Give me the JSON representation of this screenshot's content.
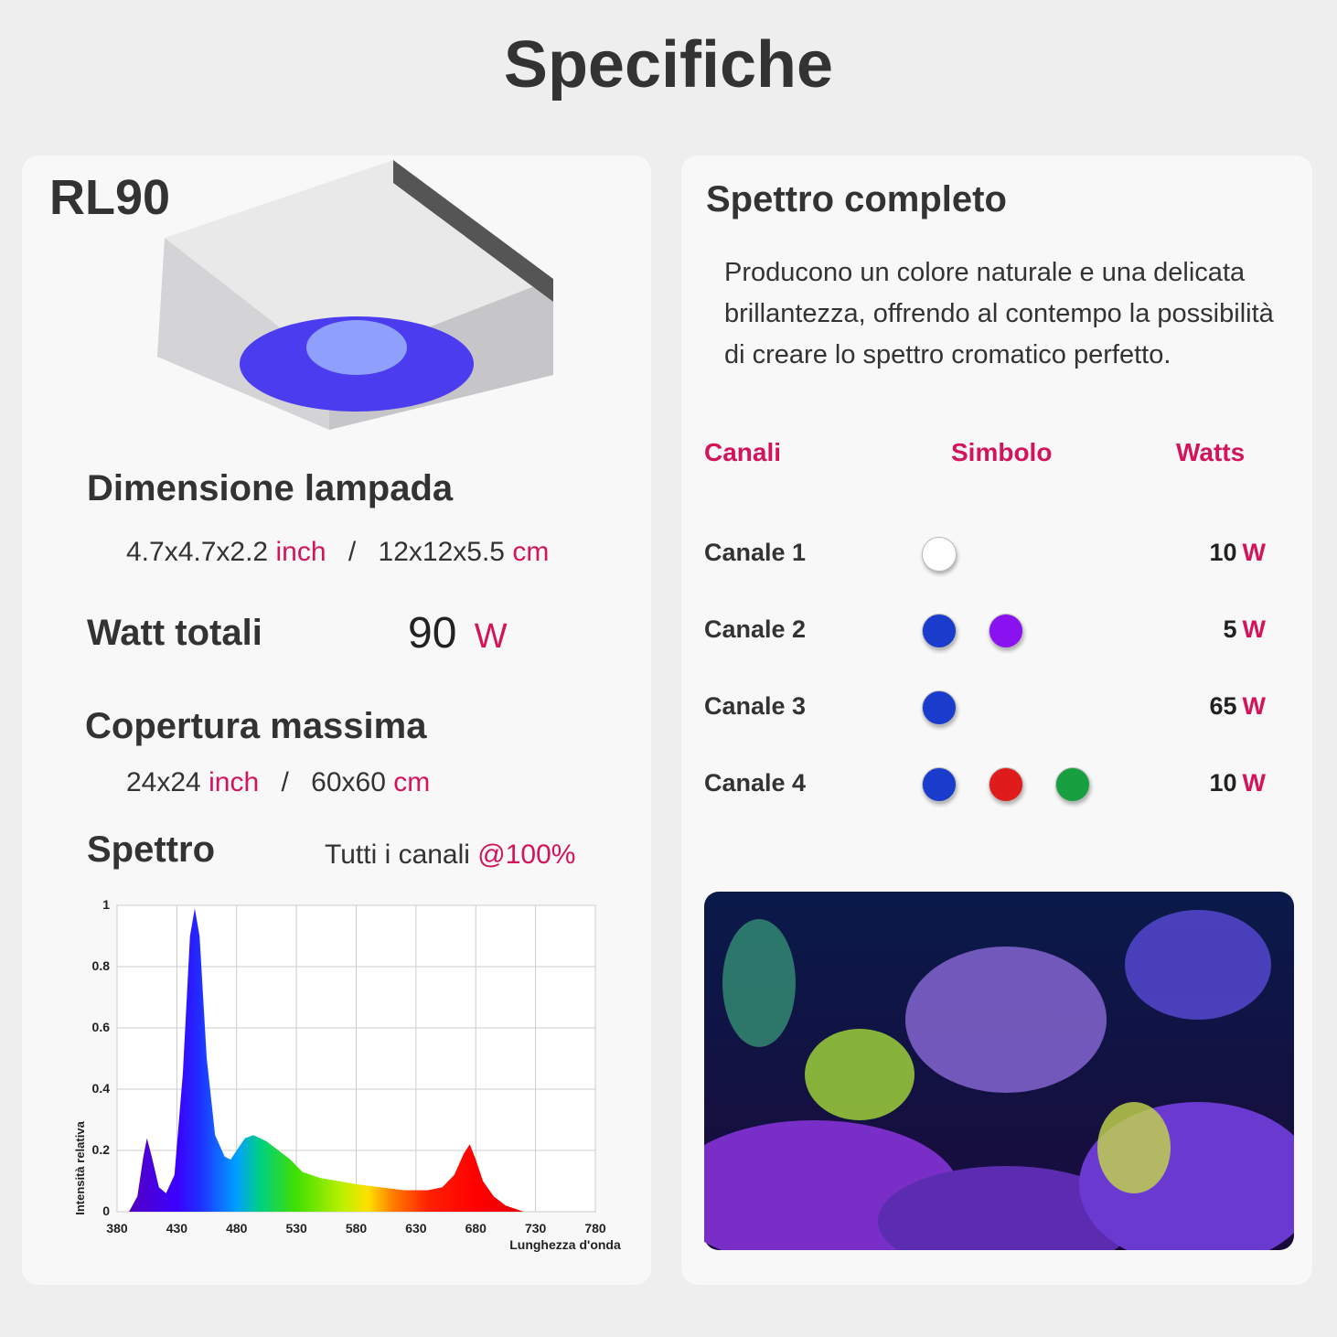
{
  "header": {
    "title": "Specifiche"
  },
  "left": {
    "model": "RL90",
    "dimension": {
      "label": "Dimensione lampada",
      "inch_value": "4.7x4.7x2.2",
      "inch_unit": "inch",
      "separator": "/",
      "cm_value": "12x12x5.5",
      "cm_unit": "cm"
    },
    "power": {
      "label": "Watt totali",
      "value": "90",
      "unit": "W"
    },
    "coverage": {
      "label": "Copertura massima",
      "inch_value": "24x24",
      "inch_unit": "inch",
      "separator": "/",
      "cm_value": "60x60",
      "cm_unit": "cm"
    },
    "spectrum": {
      "label": "Spettro",
      "note": "Tutti i canali",
      "note_accent": "@100%"
    }
  },
  "chart_data": {
    "type": "area",
    "x": [
      390,
      397,
      402,
      405,
      409,
      415,
      421,
      428,
      435,
      441,
      445,
      449,
      455,
      462,
      470,
      475,
      480,
      487,
      494,
      505,
      515,
      525,
      535,
      550,
      565,
      580,
      600,
      620,
      640,
      652,
      662,
      670,
      675,
      680,
      686,
      695,
      705,
      720
    ],
    "values": [
      0,
      0.05,
      0.18,
      0.24,
      0.18,
      0.08,
      0.06,
      0.12,
      0.45,
      0.9,
      0.99,
      0.9,
      0.5,
      0.25,
      0.18,
      0.17,
      0.2,
      0.24,
      0.25,
      0.23,
      0.2,
      0.17,
      0.13,
      0.11,
      0.1,
      0.09,
      0.08,
      0.07,
      0.07,
      0.08,
      0.12,
      0.19,
      0.22,
      0.17,
      0.1,
      0.05,
      0.02,
      0
    ],
    "xlim": [
      380,
      780
    ],
    "ylim": [
      0,
      1
    ],
    "xticks": [
      380,
      430,
      480,
      530,
      580,
      630,
      680,
      730,
      780
    ],
    "yticks": [
      0,
      0.2,
      0.4,
      0.6,
      0.8,
      1
    ],
    "xlabel": "Lunghezza d'onda",
    "ylabel": "Intensità relativa",
    "grid": true
  },
  "right": {
    "title": "Spettro completo",
    "description": "Producono un colore naturale e una delicata brillantezza, offrendo al contempo la possibilità di creare lo spettro cromatico perfetto.",
    "table": {
      "headers": [
        "Canali",
        "Simbolo",
        "Watts"
      ],
      "rows": [
        {
          "name": "Canale 1",
          "symbols": [
            "#ffffff"
          ],
          "watts": "10",
          "unit": "W"
        },
        {
          "name": "Canale 2",
          "symbols": [
            "#1a3ccc",
            "#8a12f0"
          ],
          "watts": "5",
          "unit": "W"
        },
        {
          "name": "Canale 3",
          "symbols": [
            "#1a3ccc"
          ],
          "watts": "65",
          "unit": "W"
        },
        {
          "name": "Canale 4",
          "symbols": [
            "#1a3ccc",
            "#e01b1b",
            "#18a040"
          ],
          "watts": "10",
          "unit": "W"
        }
      ]
    }
  }
}
